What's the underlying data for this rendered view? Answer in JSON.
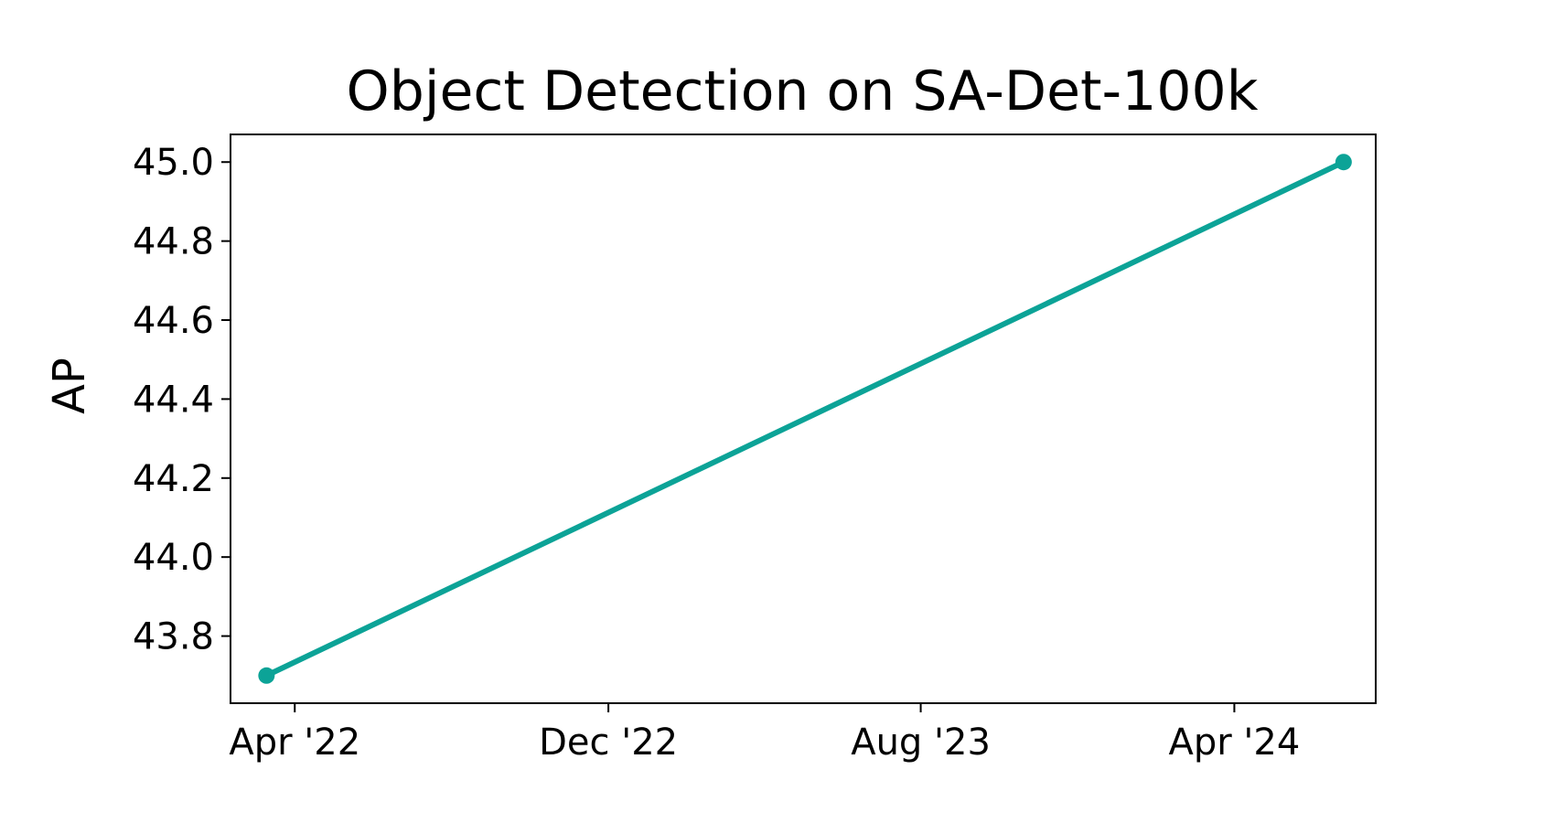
{
  "chart_data": {
    "type": "line",
    "title": "Object Detection on SA-Det-100k",
    "xlabel": "",
    "ylabel": "AP",
    "x_axis_type": "date",
    "xlim": [
      "2022-02-10",
      "2024-07-20"
    ],
    "ylim": [
      43.63,
      45.07
    ],
    "x_ticks": [
      {
        "label": "Apr '22",
        "date": "2022-04-01"
      },
      {
        "label": "Dec '22",
        "date": "2022-12-01"
      },
      {
        "label": "Aug '23",
        "date": "2023-08-01"
      },
      {
        "label": "Apr '24",
        "date": "2024-04-01"
      }
    ],
    "y_ticks": [
      {
        "label": "43.8",
        "value": 43.8
      },
      {
        "label": "44.0",
        "value": 44.0
      },
      {
        "label": "44.2",
        "value": 44.2
      },
      {
        "label": "44.4",
        "value": 44.4
      },
      {
        "label": "44.6",
        "value": 44.6
      },
      {
        "label": "44.8",
        "value": 44.8
      },
      {
        "label": "45.0",
        "value": 45.0
      }
    ],
    "grid": false,
    "legend": "none",
    "series": [
      {
        "color": "#0ca397",
        "points": [
          {
            "x": "2022-03-10",
            "y": 43.7
          },
          {
            "x": "2024-06-25",
            "y": 45.0
          }
        ]
      }
    ]
  }
}
